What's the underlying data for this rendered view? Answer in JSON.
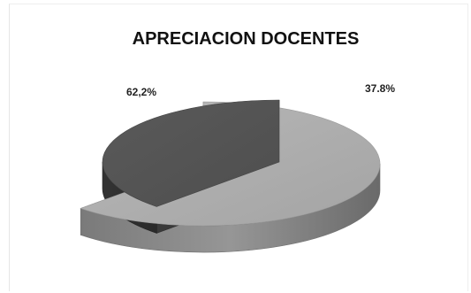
{
  "chart_data": {
    "type": "pie",
    "title": "APRECIACION DOCENTES",
    "categories": [
      "",
      ""
    ],
    "values": [
      62.2,
      37.8
    ],
    "data_labels": [
      "62,2%",
      "37.8%"
    ],
    "style": "3d-exploded",
    "legend": "none",
    "colors": [
      "#a6a6a6",
      "#595959"
    ]
  }
}
